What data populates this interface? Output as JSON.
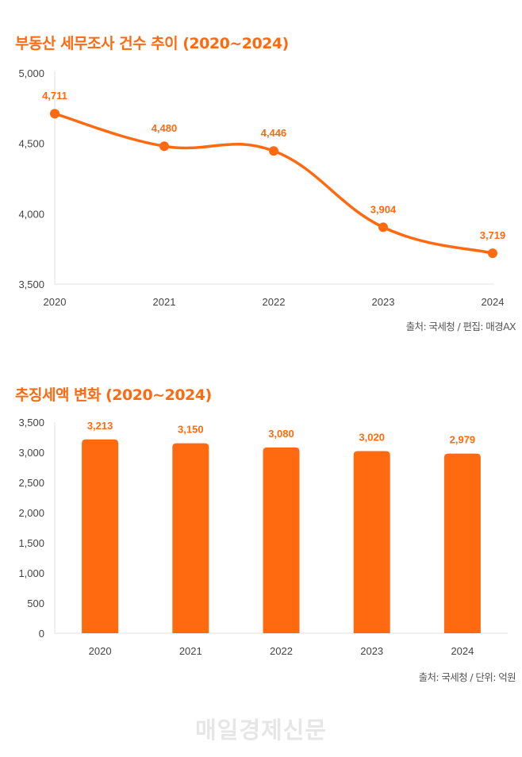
{
  "colors": {
    "accent": "#ff6a10",
    "axis_text": "#444444",
    "grid": "#e0e0e0",
    "watermark": "#e6e6e6"
  },
  "watermark": "매일경제신문",
  "chart_data": [
    {
      "type": "line",
      "title": "부동산 세무조사 건수 추이 (2020~2024)",
      "categories": [
        "2020",
        "2021",
        "2022",
        "2023",
        "2024"
      ],
      "values": [
        4711,
        4480,
        4446,
        3904,
        3719
      ],
      "data_labels": [
        "4,711",
        "4,480",
        "4,446",
        "3,904",
        "3,719"
      ],
      "ylim": [
        3500,
        5000
      ],
      "yticks": [
        3500,
        4000,
        4500,
        5000
      ],
      "ytick_labels": [
        "3,500",
        "4,000",
        "4,500",
        "5,000"
      ],
      "xlabel": "",
      "ylabel": "",
      "smooth": true,
      "grid": false,
      "source": "출처: 국세청 / 편집: 매경AX"
    },
    {
      "type": "bar",
      "title": "추징세액 변화 (2020~2024)",
      "categories": [
        "2020",
        "2021",
        "2022",
        "2023",
        "2024"
      ],
      "values": [
        3213,
        3150,
        3080,
        3020,
        2979
      ],
      "data_labels": [
        "3,213",
        "3,150",
        "3,080",
        "3,020",
        "2,979"
      ],
      "ylim": [
        0,
        3500
      ],
      "yticks": [
        0,
        500,
        1000,
        1500,
        2000,
        2500,
        3000,
        3500
      ],
      "ytick_labels": [
        "0",
        "500",
        "1,000",
        "1,500",
        "2,000",
        "2,500",
        "3,000",
        "3,500"
      ],
      "xlabel": "",
      "ylabel": "",
      "grid": false,
      "source": "출처: 국세청 / 단위: 억원"
    }
  ]
}
